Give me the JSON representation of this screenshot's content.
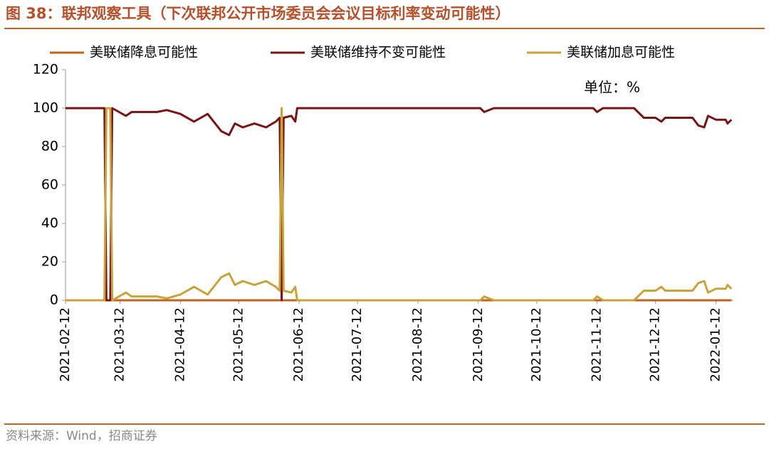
{
  "chart_data": {
    "type": "line",
    "title": "图 38：联邦观察工具（下次联邦公开市场委员会会议目标利率变动可能性）",
    "annotation": "单位：%",
    "source": "资料来源：Wind，招商证券",
    "x": [
      "2021-02-12",
      "2021-03-04",
      "2021-03-05",
      "2021-03-07",
      "2021-03-08",
      "2021-03-15",
      "2021-03-18",
      "2021-03-31",
      "2021-04-05",
      "2021-04-12",
      "2021-04-19",
      "2021-04-26",
      "2021-05-03",
      "2021-05-07",
      "2021-05-10",
      "2021-05-14",
      "2021-05-20",
      "2021-05-26",
      "2021-05-31",
      "2021-06-02",
      "2021-06-03",
      "2021-06-04",
      "2021-06-08",
      "2021-06-10",
      "2021-06-11",
      "2021-06-16",
      "2021-09-13",
      "2021-09-15",
      "2021-09-20",
      "2021-10-12",
      "2021-11-10",
      "2021-11-12",
      "2021-11-15",
      "2021-12-01",
      "2021-12-06",
      "2021-12-12",
      "2021-12-15",
      "2021-12-17",
      "2021-12-31",
      "2022-01-03",
      "2022-01-06",
      "2022-01-08",
      "2022-01-12",
      "2022-01-17",
      "2022-01-18",
      "2022-01-20"
    ],
    "series": [
      {
        "name": "美联储降息可能性",
        "color": "#c0651c",
        "values": [
          0,
          0,
          0,
          0,
          0,
          0,
          0,
          0,
          0,
          0,
          0,
          0,
          0,
          0,
          0,
          0,
          0,
          0,
          0,
          0,
          0,
          0,
          0,
          0,
          0,
          0,
          0,
          0,
          0,
          0,
          0,
          0,
          0,
          0,
          0,
          0,
          0,
          0,
          0,
          0,
          0,
          0,
          0,
          0,
          0,
          0
        ]
      },
      {
        "name": "美联储维持不变可能性",
        "color": "#7a1414",
        "values": [
          100,
          100,
          0,
          0,
          100,
          96,
          98,
          98,
          99,
          97,
          93,
          97,
          88,
          86,
          92,
          90,
          92,
          90,
          93,
          95,
          0,
          95,
          96,
          93,
          100,
          100,
          100,
          98,
          100,
          100,
          100,
          98,
          100,
          100,
          95,
          95,
          93,
          95,
          95,
          91,
          90,
          96,
          94,
          94,
          92,
          94
        ]
      },
      {
        "name": "美联储加息可能性",
        "color": "#c9a23a",
        "values": [
          0,
          0,
          100,
          100,
          0,
          4,
          2,
          2,
          1,
          3,
          7,
          3,
          12,
          14,
          8,
          10,
          8,
          10,
          7,
          5,
          100,
          5,
          4,
          7,
          0,
          0,
          0,
          2,
          0,
          0,
          0,
          2,
          0,
          0,
          5,
          5,
          7,
          5,
          5,
          9,
          10,
          4,
          6,
          6,
          8,
          6
        ]
      }
    ],
    "xlim": [
      "2021-02-12",
      "2022-01-21"
    ],
    "xticks": [
      "2021-02-12",
      "2021-03-12",
      "2021-04-12",
      "2021-05-12",
      "2021-06-12",
      "2021-07-12",
      "2021-08-12",
      "2021-09-12",
      "2021-10-12",
      "2021-11-12",
      "2021-12-12",
      "2022-01-12"
    ],
    "ylim": [
      0,
      120
    ],
    "yticks": [
      0,
      20,
      40,
      60,
      80,
      100,
      120
    ],
    "grid": false
  }
}
